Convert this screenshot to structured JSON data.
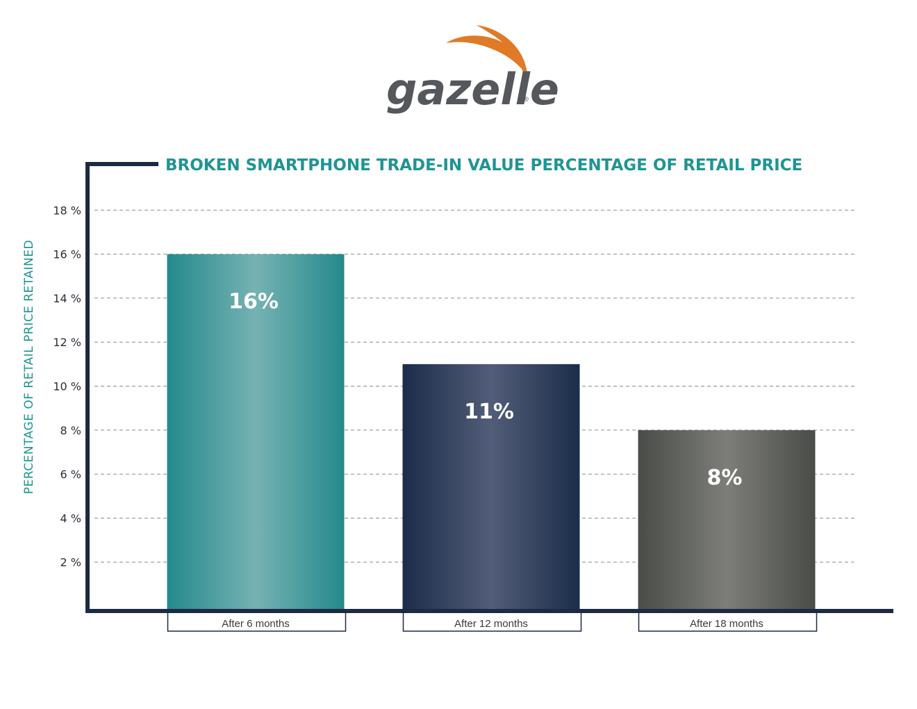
{
  "brand": {
    "name": "gazelle",
    "trademark": "®",
    "swoosh_color": "#e07a26",
    "text_color": "#54575c"
  },
  "colors": {
    "axis": "#1c2a42",
    "title": "#1f9494",
    "grid": "#8a8a8a"
  },
  "chart_data": {
    "type": "bar",
    "title": "BROKEN SMARTPHONE TRADE-IN VALUE PERCENTAGE OF RETAIL PRICE",
    "xlabel": "",
    "ylabel": "PERCENTAGE OF RETAIL PRICE RETAINED",
    "categories": [
      "After 6 months",
      "After 12 months",
      "After 18 months"
    ],
    "values": [
      16,
      11,
      8
    ],
    "data_labels": [
      "16%",
      "11%",
      "8%"
    ],
    "bar_colors": [
      {
        "edge": "#24898c",
        "center": "#76b2b3"
      },
      {
        "edge": "#1b2d4a",
        "center": "#525d78"
      },
      {
        "edge": "#4a4c48",
        "center": "#7d7e79"
      }
    ],
    "ylim": [
      0,
      18.5
    ],
    "yticks": [
      2,
      4,
      6,
      8,
      10,
      12,
      14,
      16,
      18
    ],
    "ytick_labels": [
      "2 %",
      "4 %",
      "6 %",
      "8 %",
      "10 %",
      "12 %",
      "14 %",
      "16 %",
      "18 %"
    ],
    "grid": true,
    "grid_style": "dashed",
    "legend": false
  }
}
